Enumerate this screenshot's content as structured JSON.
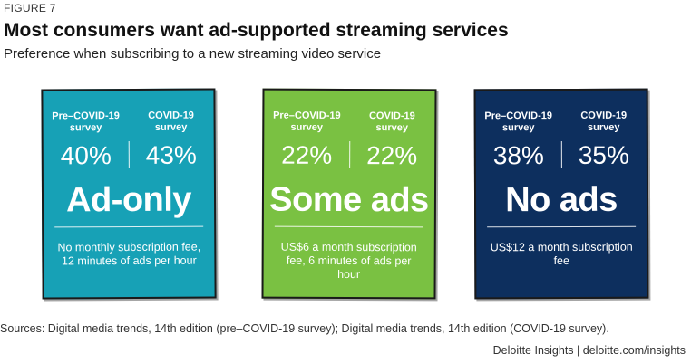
{
  "figure_label": "FIGURE 7",
  "title": "Most consumers want ad-supported streaming services",
  "subtitle": "Preference when subscribing to a new streaming video service",
  "chart_data": {
    "type": "table",
    "columns": [
      "Pre–COVID-19 survey",
      "COVID-19 survey"
    ],
    "categories": [
      "Ad-only",
      "Some ads",
      "No ads"
    ],
    "series": [
      {
        "name": "Pre–COVID-19 survey",
        "values": [
          40,
          22,
          38
        ]
      },
      {
        "name": "COVID-19 survey",
        "values": [
          43,
          22,
          35
        ]
      }
    ],
    "cards": [
      {
        "category": "Ad-only",
        "pre_label": "Pre–COVID-19\nsurvey",
        "covid_label": "COVID-19\nsurvey",
        "pre_value": "40%",
        "covid_value": "43%",
        "description": "No monthly subscription fee, 12 minutes of ads per hour",
        "color": "#17a1b6"
      },
      {
        "category": "Some ads",
        "pre_label": "Pre–COVID-19\nsurvey",
        "covid_label": "COVID-19\nsurvey",
        "pre_value": "22%",
        "covid_value": "22%",
        "description": "US$6 a month subscription fee, 6 minutes of ads per hour",
        "color": "#7ac142"
      },
      {
        "category": "No ads",
        "pre_label": "Pre–COVID-19\nsurvey",
        "covid_label": "COVID-19\nsurvey",
        "pre_value": "38%",
        "covid_value": "35%",
        "description": "US$12 a month subscription fee",
        "color": "#0d2f5e"
      }
    ]
  },
  "sources": "Sources: Digital media trends, 14th edition (pre–COVID-19 survey); Digital media trends, 14th edition (COVID-19 survey).",
  "credit": "Deloitte Insights | deloitte.com/insights"
}
